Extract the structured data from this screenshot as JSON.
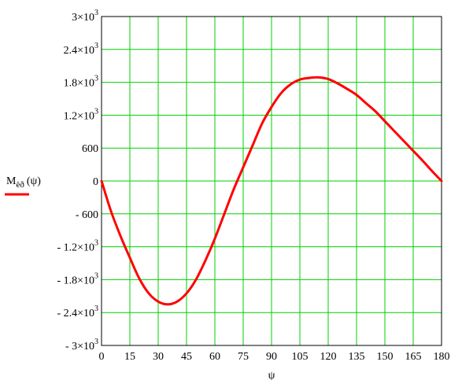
{
  "chart_data": {
    "type": "line",
    "title": "",
    "xlabel": "ψ",
    "ylabel": "",
    "xlim": [
      0,
      180
    ],
    "ylim": [
      -3000,
      3000
    ],
    "grid": true,
    "legend_placement": "left",
    "x_ticks": [
      "0",
      "15",
      "30",
      "45",
      "60",
      "75",
      "90",
      "105",
      "120",
      "135",
      "150",
      "165",
      "180"
    ],
    "y_ticks": [
      {
        "value": 3000,
        "base": "3×10",
        "exp": "3"
      },
      {
        "value": 2400,
        "base": "2.4×10",
        "exp": "3"
      },
      {
        "value": 1800,
        "base": "1.8×10",
        "exp": "3"
      },
      {
        "value": 1200,
        "base": "1.2×10",
        "exp": "3"
      },
      {
        "value": 600,
        "base": "600",
        "exp": ""
      },
      {
        "value": 0,
        "base": "0",
        "exp": ""
      },
      {
        "value": -600,
        "base": "- 600",
        "exp": ""
      },
      {
        "value": -1200,
        "base": "- 1.2×10",
        "exp": "3"
      },
      {
        "value": -1800,
        "base": "- 1.8×10",
        "exp": "3"
      },
      {
        "value": -2400,
        "base": "- 2.4×10",
        "exp": "3"
      },
      {
        "value": -3000,
        "base": "- 3×10",
        "exp": "3"
      }
    ],
    "series": [
      {
        "name_main": "M",
        "name_sub": "êð",
        "name_arg": "(ψ)",
        "color": "#ff0000",
        "x": [
          0,
          5,
          10,
          15,
          20,
          25,
          30,
          35,
          40,
          45,
          50,
          55,
          60,
          65,
          70,
          75,
          80,
          85,
          90,
          95,
          100,
          105,
          110,
          115,
          120,
          125,
          130,
          135,
          140,
          145,
          150,
          155,
          160,
          165,
          170,
          175,
          180
        ],
        "y": [
          0,
          -550,
          -1000,
          -1400,
          -1780,
          -2050,
          -2200,
          -2250,
          -2200,
          -2050,
          -1800,
          -1450,
          -1050,
          -600,
          -150,
          250,
          650,
          1050,
          1350,
          1600,
          1760,
          1850,
          1880,
          1890,
          1860,
          1780,
          1680,
          1570,
          1420,
          1270,
          1090,
          910,
          730,
          550,
          370,
          180,
          0
        ]
      }
    ]
  },
  "colors": {
    "grid": "#00d000",
    "axis": "#000000",
    "series": "#ff0000",
    "background": "#ffffff"
  }
}
